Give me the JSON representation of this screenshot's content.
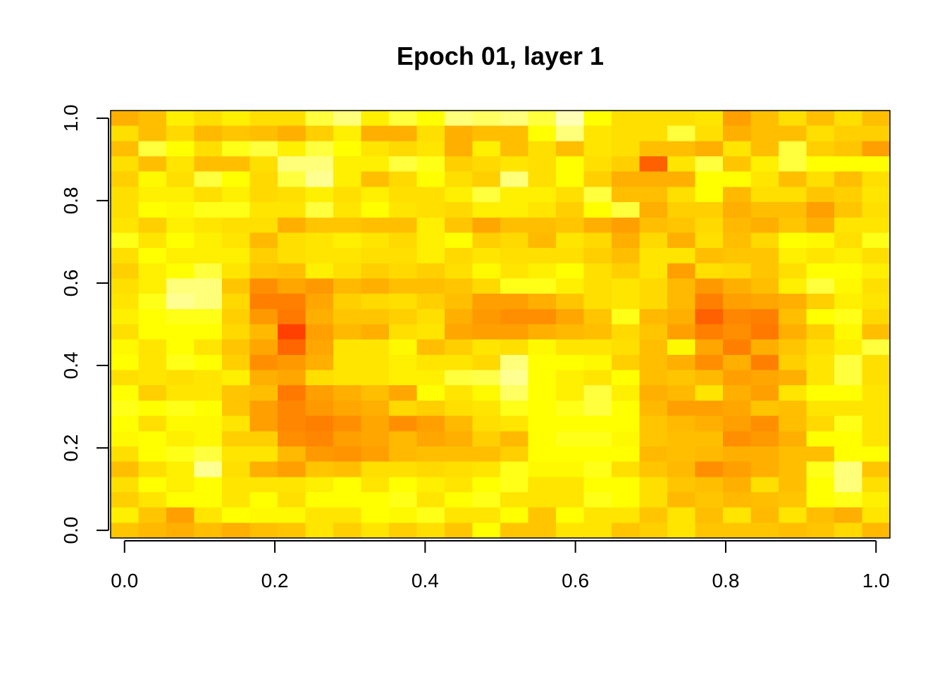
{
  "chart_data": {
    "type": "heatmap",
    "title": "Epoch 01, layer 1",
    "xlabel": "",
    "ylabel": "",
    "xlim": [
      0,
      1
    ],
    "ylim": [
      0,
      1
    ],
    "x_ticks": [
      "0.0",
      "0.2",
      "0.4",
      "0.6",
      "0.8",
      "1.0"
    ],
    "y_ticks": [
      "0.0",
      "0.2",
      "0.4",
      "0.6",
      "0.8",
      "1.0"
    ],
    "grid": false,
    "legend": "none",
    "colormap": "heat.colors",
    "rows": 28,
    "cols": 28,
    "values": [
      [
        0.55,
        0.6,
        0.75,
        0.7,
        0.75,
        0.7,
        0.7,
        0.85,
        0.9,
        0.75,
        0.85,
        0.8,
        0.9,
        0.88,
        0.9,
        0.85,
        0.95,
        0.8,
        0.7,
        0.7,
        0.7,
        0.72,
        0.5,
        0.6,
        0.7,
        0.6,
        0.7,
        0.6
      ],
      [
        0.7,
        0.6,
        0.68,
        0.58,
        0.62,
        0.6,
        0.55,
        0.65,
        0.75,
        0.55,
        0.55,
        0.7,
        0.55,
        0.6,
        0.6,
        0.8,
        0.9,
        0.72,
        0.7,
        0.7,
        0.85,
        0.7,
        0.55,
        0.6,
        0.6,
        0.7,
        0.65,
        0.65
      ],
      [
        0.6,
        0.85,
        0.8,
        0.7,
        0.82,
        0.85,
        0.75,
        0.85,
        0.8,
        0.72,
        0.68,
        0.72,
        0.55,
        0.75,
        0.6,
        0.7,
        0.6,
        0.72,
        0.7,
        0.6,
        0.6,
        0.55,
        0.72,
        0.6,
        0.85,
        0.65,
        0.62,
        0.5
      ],
      [
        0.7,
        0.6,
        0.72,
        0.6,
        0.6,
        0.7,
        0.9,
        0.9,
        0.75,
        0.75,
        0.85,
        0.82,
        0.65,
        0.68,
        0.72,
        0.7,
        0.8,
        0.7,
        0.65,
        0.3,
        0.72,
        0.85,
        0.62,
        0.75,
        0.85,
        0.8,
        0.8,
        0.8
      ],
      [
        0.65,
        0.78,
        0.7,
        0.85,
        0.8,
        0.68,
        0.85,
        0.92,
        0.75,
        0.6,
        0.68,
        0.8,
        0.7,
        0.65,
        0.9,
        0.7,
        0.8,
        0.65,
        0.55,
        0.55,
        0.55,
        0.8,
        0.8,
        0.72,
        0.6,
        0.7,
        0.6,
        0.7
      ],
      [
        0.7,
        0.75,
        0.75,
        0.7,
        0.75,
        0.68,
        0.7,
        0.75,
        0.7,
        0.75,
        0.7,
        0.7,
        0.75,
        0.85,
        0.75,
        0.75,
        0.7,
        0.85,
        0.6,
        0.6,
        0.7,
        0.8,
        0.58,
        0.7,
        0.7,
        0.62,
        0.65,
        0.72
      ],
      [
        0.7,
        0.8,
        0.78,
        0.82,
        0.82,
        0.72,
        0.72,
        0.85,
        0.72,
        0.8,
        0.72,
        0.7,
        0.68,
        0.75,
        0.75,
        0.72,
        0.65,
        0.8,
        0.85,
        0.55,
        0.65,
        0.65,
        0.55,
        0.6,
        0.6,
        0.5,
        0.62,
        0.7
      ],
      [
        0.72,
        0.65,
        0.75,
        0.72,
        0.7,
        0.7,
        0.55,
        0.62,
        0.62,
        0.6,
        0.6,
        0.75,
        0.62,
        0.52,
        0.6,
        0.6,
        0.62,
        0.55,
        0.5,
        0.6,
        0.62,
        0.68,
        0.58,
        0.55,
        0.62,
        0.55,
        0.72,
        0.72
      ],
      [
        0.82,
        0.72,
        0.8,
        0.75,
        0.72,
        0.58,
        0.7,
        0.72,
        0.75,
        0.72,
        0.68,
        0.75,
        0.8,
        0.65,
        0.68,
        0.58,
        0.72,
        0.68,
        0.55,
        0.68,
        0.55,
        0.7,
        0.6,
        0.68,
        0.8,
        0.78,
        0.7,
        0.82
      ],
      [
        0.7,
        0.8,
        0.75,
        0.75,
        0.75,
        0.65,
        0.7,
        0.72,
        0.72,
        0.7,
        0.7,
        0.75,
        0.68,
        0.72,
        0.7,
        0.7,
        0.7,
        0.65,
        0.6,
        0.72,
        0.72,
        0.6,
        0.62,
        0.62,
        0.75,
        0.72,
        0.75,
        0.7
      ],
      [
        0.65,
        0.75,
        0.8,
        0.85,
        0.72,
        0.62,
        0.6,
        0.75,
        0.7,
        0.65,
        0.68,
        0.65,
        0.7,
        0.78,
        0.72,
        0.75,
        0.8,
        0.7,
        0.65,
        0.72,
        0.5,
        0.7,
        0.68,
        0.62,
        0.7,
        0.8,
        0.8,
        0.75
      ],
      [
        0.7,
        0.75,
        0.9,
        0.9,
        0.62,
        0.45,
        0.52,
        0.48,
        0.58,
        0.55,
        0.6,
        0.6,
        0.62,
        0.68,
        0.82,
        0.82,
        0.75,
        0.7,
        0.72,
        0.68,
        0.58,
        0.48,
        0.55,
        0.6,
        0.75,
        0.85,
        0.78,
        0.7
      ],
      [
        0.72,
        0.82,
        0.92,
        0.9,
        0.68,
        0.4,
        0.4,
        0.52,
        0.65,
        0.68,
        0.7,
        0.65,
        0.6,
        0.5,
        0.5,
        0.55,
        0.62,
        0.7,
        0.72,
        0.68,
        0.58,
        0.4,
        0.5,
        0.52,
        0.55,
        0.65,
        0.75,
        0.72
      ],
      [
        0.75,
        0.8,
        0.82,
        0.82,
        0.65,
        0.48,
        0.38,
        0.55,
        0.62,
        0.62,
        0.65,
        0.7,
        0.55,
        0.48,
        0.45,
        0.45,
        0.52,
        0.62,
        0.82,
        0.58,
        0.55,
        0.3,
        0.42,
        0.4,
        0.6,
        0.8,
        0.82,
        0.68
      ],
      [
        0.7,
        0.8,
        0.8,
        0.8,
        0.68,
        0.58,
        0.2,
        0.5,
        0.58,
        0.55,
        0.7,
        0.72,
        0.52,
        0.5,
        0.5,
        0.55,
        0.58,
        0.6,
        0.68,
        0.62,
        0.5,
        0.4,
        0.45,
        0.38,
        0.55,
        0.65,
        0.78,
        0.6
      ],
      [
        0.78,
        0.72,
        0.8,
        0.72,
        0.62,
        0.52,
        0.32,
        0.52,
        0.72,
        0.72,
        0.78,
        0.6,
        0.65,
        0.72,
        0.7,
        0.78,
        0.72,
        0.72,
        0.7,
        0.6,
        0.78,
        0.52,
        0.4,
        0.55,
        0.62,
        0.7,
        0.75,
        0.85
      ],
      [
        0.8,
        0.72,
        0.82,
        0.8,
        0.65,
        0.45,
        0.48,
        0.55,
        0.72,
        0.72,
        0.75,
        0.72,
        0.72,
        0.68,
        0.9,
        0.8,
        0.8,
        0.78,
        0.65,
        0.6,
        0.55,
        0.45,
        0.55,
        0.4,
        0.65,
        0.72,
        0.85,
        0.7
      ],
      [
        0.7,
        0.72,
        0.7,
        0.72,
        0.75,
        0.55,
        0.52,
        0.7,
        0.72,
        0.72,
        0.75,
        0.75,
        0.85,
        0.86,
        0.92,
        0.8,
        0.75,
        0.72,
        0.8,
        0.6,
        0.62,
        0.58,
        0.5,
        0.52,
        0.55,
        0.72,
        0.85,
        0.7
      ],
      [
        0.8,
        0.65,
        0.72,
        0.72,
        0.62,
        0.6,
        0.38,
        0.5,
        0.55,
        0.6,
        0.52,
        0.8,
        0.72,
        0.78,
        0.88,
        0.8,
        0.75,
        0.85,
        0.75,
        0.55,
        0.58,
        0.72,
        0.55,
        0.5,
        0.72,
        0.8,
        0.8,
        0.72
      ],
      [
        0.82,
        0.8,
        0.82,
        0.8,
        0.62,
        0.5,
        0.42,
        0.48,
        0.52,
        0.55,
        0.68,
        0.65,
        0.7,
        0.72,
        0.82,
        0.8,
        0.82,
        0.85,
        0.8,
        0.58,
        0.5,
        0.5,
        0.52,
        0.62,
        0.6,
        0.72,
        0.72,
        0.72
      ],
      [
        0.8,
        0.7,
        0.78,
        0.78,
        0.72,
        0.5,
        0.42,
        0.4,
        0.45,
        0.52,
        0.45,
        0.5,
        0.58,
        0.7,
        0.72,
        0.8,
        0.8,
        0.8,
        0.8,
        0.62,
        0.58,
        0.55,
        0.5,
        0.45,
        0.6,
        0.68,
        0.82,
        0.72
      ],
      [
        0.78,
        0.8,
        0.75,
        0.78,
        0.65,
        0.65,
        0.45,
        0.42,
        0.5,
        0.52,
        0.58,
        0.52,
        0.55,
        0.65,
        0.58,
        0.8,
        0.82,
        0.82,
        0.78,
        0.62,
        0.6,
        0.6,
        0.45,
        0.48,
        0.55,
        0.8,
        0.8,
        0.72
      ],
      [
        0.7,
        0.8,
        0.82,
        0.85,
        0.72,
        0.72,
        0.58,
        0.48,
        0.46,
        0.5,
        0.58,
        0.6,
        0.6,
        0.6,
        0.65,
        0.8,
        0.8,
        0.8,
        0.8,
        0.58,
        0.6,
        0.58,
        0.55,
        0.55,
        0.6,
        0.6,
        0.8,
        0.8
      ],
      [
        0.6,
        0.7,
        0.75,
        0.92,
        0.7,
        0.55,
        0.5,
        0.62,
        0.6,
        0.7,
        0.7,
        0.68,
        0.7,
        0.72,
        0.82,
        0.78,
        0.78,
        0.82,
        0.7,
        0.62,
        0.58,
        0.45,
        0.5,
        0.55,
        0.6,
        0.82,
        0.9,
        0.62
      ],
      [
        0.7,
        0.8,
        0.75,
        0.8,
        0.72,
        0.72,
        0.72,
        0.75,
        0.8,
        0.72,
        0.8,
        0.75,
        0.72,
        0.8,
        0.82,
        0.72,
        0.72,
        0.8,
        0.8,
        0.7,
        0.62,
        0.6,
        0.55,
        0.7,
        0.6,
        0.8,
        0.9,
        0.7
      ],
      [
        0.65,
        0.72,
        0.8,
        0.8,
        0.72,
        0.8,
        0.7,
        0.8,
        0.8,
        0.8,
        0.82,
        0.72,
        0.8,
        0.82,
        0.72,
        0.72,
        0.72,
        0.82,
        0.8,
        0.7,
        0.58,
        0.62,
        0.58,
        0.6,
        0.62,
        0.8,
        0.82,
        0.75
      ],
      [
        0.75,
        0.62,
        0.5,
        0.72,
        0.8,
        0.78,
        0.78,
        0.72,
        0.72,
        0.8,
        0.78,
        0.82,
        0.72,
        0.72,
        0.8,
        0.62,
        0.8,
        0.72,
        0.72,
        0.62,
        0.72,
        0.6,
        0.72,
        0.58,
        0.72,
        0.6,
        0.55,
        0.72
      ],
      [
        0.62,
        0.58,
        0.55,
        0.6,
        0.55,
        0.6,
        0.62,
        0.72,
        0.65,
        0.72,
        0.65,
        0.7,
        0.62,
        0.8,
        0.62,
        0.62,
        0.72,
        0.72,
        0.62,
        0.65,
        0.72,
        0.62,
        0.62,
        0.62,
        0.6,
        0.62,
        0.68,
        0.58
      ]
    ]
  }
}
